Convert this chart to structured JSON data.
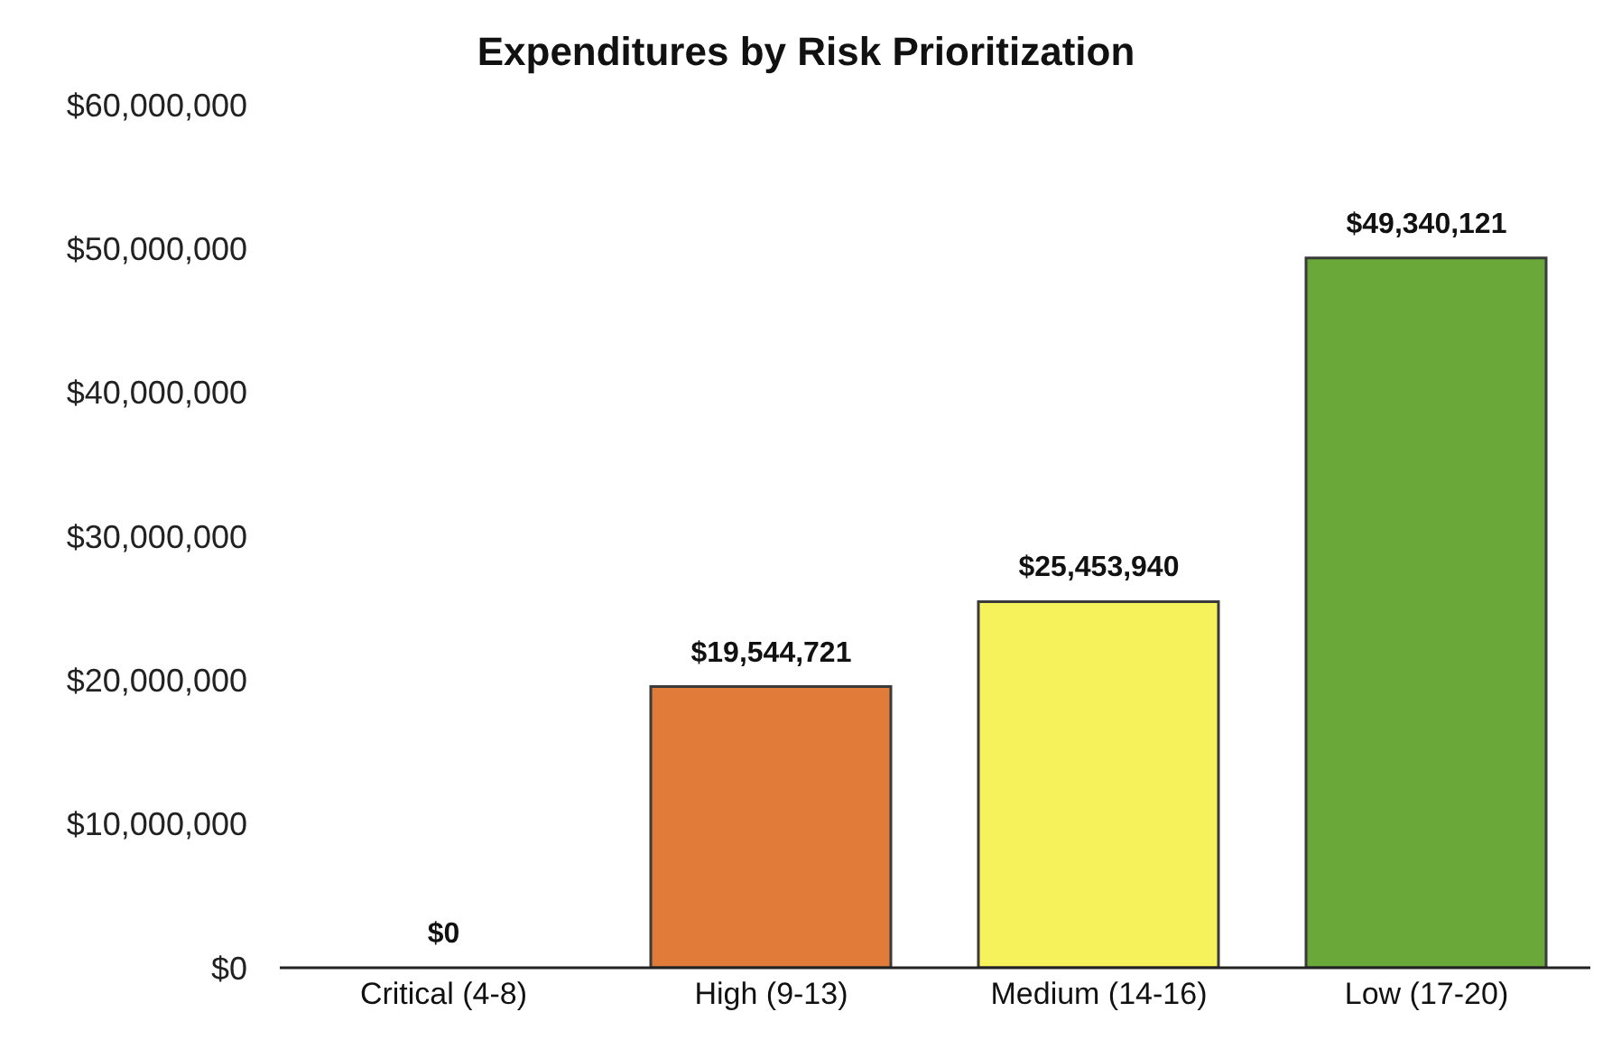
{
  "chart_data": {
    "type": "bar",
    "title": "Expenditures by Risk Prioritization",
    "categories": [
      "Critical (4-8)",
      "High (9-13)",
      "Medium (14-16)",
      "Low (17-20)"
    ],
    "values": [
      0,
      19544721,
      25453940,
      49340121
    ],
    "colors": [
      "#c0392b",
      "#e07b3a",
      "#f6f25c",
      "#6aa83a"
    ],
    "value_labels": [
      "$0",
      "$19,544,721",
      "$25,453,940",
      "$49,340,121"
    ],
    "ylim": [
      0,
      60000000
    ],
    "yticks": [
      {
        "value": 0,
        "label": "$0"
      },
      {
        "value": 10000000,
        "label": "$10,000,000"
      },
      {
        "value": 20000000,
        "label": "$20,000,000"
      },
      {
        "value": 30000000,
        "label": "$30,000,000"
      },
      {
        "value": 40000000,
        "label": "$40,000,000"
      },
      {
        "value": 50000000,
        "label": "$50,000,000"
      },
      {
        "value": 60000000,
        "label": "$60,000,000"
      }
    ],
    "grid": false,
    "legend": false
  }
}
